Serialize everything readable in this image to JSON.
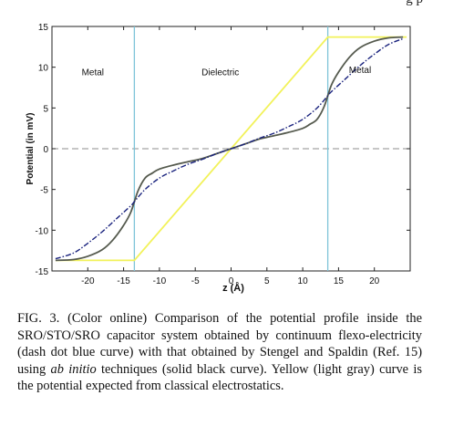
{
  "page_header": "g p",
  "chart_data": {
    "type": "line",
    "title": "",
    "xlabel": "z (Å)",
    "ylabel": "Potential (in mV)",
    "xlim": [
      -25,
      25
    ],
    "ylim": [
      -15,
      15
    ],
    "xticks": [
      "-20",
      "-15",
      "-10",
      "-5",
      "0",
      "5",
      "10",
      "15",
      "20"
    ],
    "yticks": [
      "-15",
      "-10",
      "-5",
      "0",
      "5",
      "10",
      "15"
    ],
    "region_labels": [
      {
        "text": "Metal",
        "x": -19.3,
        "y": 9.0
      },
      {
        "text": "Dielectric",
        "x": -1.5,
        "y": 9.0
      },
      {
        "text": "Metal",
        "x": 18,
        "y": 9.3
      }
    ],
    "interfaces": [
      -13.5,
      13.5
    ],
    "zero_line": true,
    "colors": {
      "classical": "#f2f25a",
      "ab_initio": "#555a4e",
      "flexo": "#1a237e",
      "interface": "#7ec4d8",
      "zero_line": "#8c8c8c"
    },
    "series": [
      {
        "style": "solid-yellow",
        "x": [
          -24.5,
          -13.5,
          13.5,
          24.5
        ],
        "y": [
          -13.7,
          -13.7,
          13.7,
          13.7
        ]
      },
      {
        "style": "solid-black",
        "x": [
          -24.5,
          -22,
          -20,
          -18,
          -16.5,
          -15,
          -14,
          -13,
          -12,
          -11,
          -10,
          -8,
          -6,
          -4,
          -2,
          0,
          2,
          4,
          6,
          8,
          10,
          11,
          12,
          13,
          14,
          15,
          16.5,
          18,
          20,
          22,
          24
        ],
        "y": [
          -13.7,
          -13.6,
          -13.2,
          -12.4,
          -11.2,
          -9.4,
          -7.8,
          -5.2,
          -3.6,
          -3.0,
          -2.5,
          -2.0,
          -1.6,
          -1.2,
          -0.6,
          0,
          0.6,
          1.2,
          1.6,
          2.0,
          2.5,
          3.0,
          3.6,
          5.2,
          7.8,
          9.4,
          11.2,
          12.4,
          13.2,
          13.6,
          13.7
        ]
      },
      {
        "style": "dash-dot-blue",
        "x": [
          -24.5,
          -22,
          -20,
          -18,
          -16,
          -14,
          -13.5,
          -12,
          -10,
          -8,
          -6,
          -4,
          -2,
          0,
          2,
          4,
          6,
          8,
          10,
          12,
          13.5,
          14,
          16,
          18,
          20,
          22,
          24
        ],
        "y": [
          -13.5,
          -12.8,
          -11.6,
          -10.2,
          -8.6,
          -7.0,
          -6.5,
          -5.0,
          -3.6,
          -2.7,
          -1.9,
          -1.3,
          -0.6,
          0,
          0.6,
          1.3,
          1.9,
          2.7,
          3.6,
          5.0,
          6.5,
          7.0,
          8.6,
          10.2,
          11.6,
          12.8,
          13.5
        ]
      }
    ]
  },
  "caption": {
    "fig_label": "FIG. 3.",
    "text_1": "(Color online) Comparison of the potential profile inside the SRO/STO/SRO capacitor system obtained by continuum flexo-electricity (dash dot blue curve) with that obtained by Stengel and Spaldin (Ref. 15) using",
    "text_italic": "ab initio",
    "text_2": "techniques (solid black curve). Yellow (light gray) curve is the potential expected from classical electrostatics."
  }
}
